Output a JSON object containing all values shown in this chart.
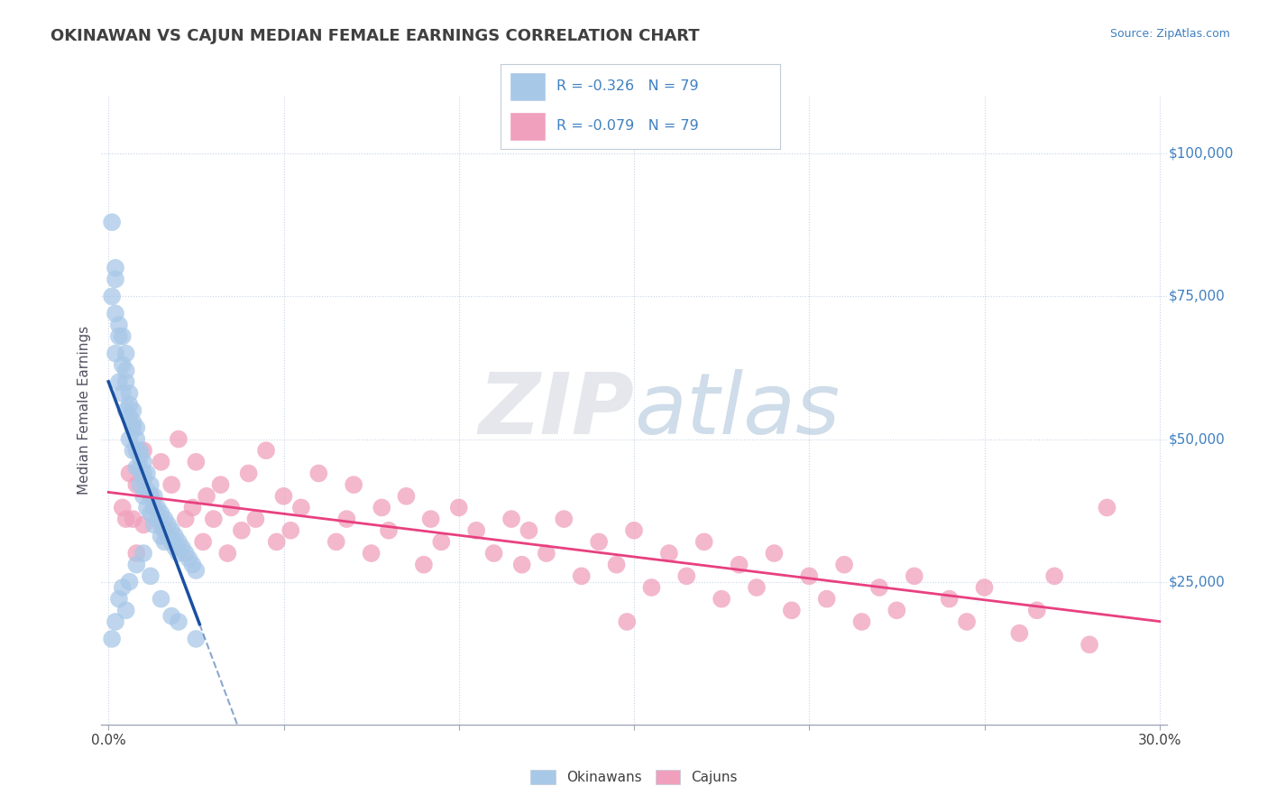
{
  "title": "OKINAWAN VS CAJUN MEDIAN FEMALE EARNINGS CORRELATION CHART",
  "source": "Source: ZipAtlas.com",
  "ylabel": "Median Female Earnings",
  "xlim": [
    -0.002,
    0.302
  ],
  "ylim": [
    0,
    110000
  ],
  "ytick_labels": [
    "$25,000",
    "$50,000",
    "$75,000",
    "$100,000"
  ],
  "ytick_values": [
    25000,
    50000,
    75000,
    100000
  ],
  "xtick_values": [
    0.0,
    0.05,
    0.1,
    0.15,
    0.2,
    0.25,
    0.3
  ],
  "xtick_labels": [
    "0.0%",
    "",
    "",
    "",
    "",
    "",
    "30.0%"
  ],
  "okinawan_color": "#a8c8e8",
  "cajun_color": "#f0a0bc",
  "okinawan_line_color": "#1a50a0",
  "cajun_line_color": "#e84080",
  "R_okinawan": -0.326,
  "R_cajun": -0.079,
  "N_okinawan": 79,
  "N_cajun": 79,
  "background_color": "#ffffff",
  "grid_color": "#c8d4e8",
  "title_color": "#404040",
  "source_color": "#4080c0",
  "legend_text_color": "#4080c0",
  "watermark_zip_color": "#d8dce8",
  "watermark_atlas_color": "#a8bcd8",
  "okinawan_x": [
    0.001,
    0.001,
    0.002,
    0.002,
    0.002,
    0.002,
    0.003,
    0.003,
    0.003,
    0.004,
    0.004,
    0.004,
    0.005,
    0.005,
    0.005,
    0.005,
    0.006,
    0.006,
    0.006,
    0.006,
    0.007,
    0.007,
    0.007,
    0.007,
    0.008,
    0.008,
    0.008,
    0.008,
    0.009,
    0.009,
    0.009,
    0.009,
    0.01,
    0.01,
    0.01,
    0.01,
    0.011,
    0.011,
    0.011,
    0.012,
    0.012,
    0.012,
    0.013,
    0.013,
    0.013,
    0.014,
    0.014,
    0.015,
    0.015,
    0.015,
    0.016,
    0.016,
    0.016,
    0.017,
    0.017,
    0.018,
    0.018,
    0.019,
    0.019,
    0.02,
    0.02,
    0.021,
    0.022,
    0.023,
    0.024,
    0.025,
    0.001,
    0.002,
    0.003,
    0.004,
    0.005,
    0.006,
    0.008,
    0.01,
    0.012,
    0.015,
    0.018,
    0.02,
    0.025
  ],
  "okinawan_y": [
    88000,
    75000,
    80000,
    72000,
    65000,
    78000,
    70000,
    68000,
    60000,
    68000,
    63000,
    58000,
    65000,
    60000,
    55000,
    62000,
    58000,
    54000,
    50000,
    56000,
    55000,
    52000,
    48000,
    53000,
    52000,
    48000,
    45000,
    50000,
    48000,
    45000,
    42000,
    47000,
    46000,
    43000,
    40000,
    44000,
    44000,
    41000,
    38000,
    42000,
    40000,
    37000,
    40000,
    38000,
    35000,
    38000,
    36000,
    37000,
    35000,
    33000,
    36000,
    34000,
    32000,
    35000,
    33000,
    34000,
    32000,
    33000,
    31000,
    32000,
    30000,
    31000,
    30000,
    29000,
    28000,
    27000,
    15000,
    18000,
    22000,
    24000,
    20000,
    25000,
    28000,
    30000,
    26000,
    22000,
    19000,
    18000,
    15000
  ],
  "cajun_x": [
    0.004,
    0.006,
    0.007,
    0.008,
    0.01,
    0.01,
    0.012,
    0.013,
    0.015,
    0.016,
    0.018,
    0.02,
    0.022,
    0.024,
    0.025,
    0.027,
    0.028,
    0.03,
    0.032,
    0.034,
    0.035,
    0.038,
    0.04,
    0.042,
    0.045,
    0.048,
    0.05,
    0.052,
    0.055,
    0.06,
    0.065,
    0.068,
    0.07,
    0.075,
    0.078,
    0.08,
    0.085,
    0.09,
    0.092,
    0.095,
    0.1,
    0.105,
    0.11,
    0.115,
    0.118,
    0.12,
    0.125,
    0.13,
    0.135,
    0.14,
    0.145,
    0.15,
    0.155,
    0.16,
    0.165,
    0.17,
    0.175,
    0.18,
    0.185,
    0.19,
    0.195,
    0.2,
    0.205,
    0.21,
    0.215,
    0.22,
    0.225,
    0.23,
    0.24,
    0.245,
    0.25,
    0.26,
    0.265,
    0.27,
    0.28,
    0.148,
    0.285,
    0.005,
    0.008
  ],
  "cajun_y": [
    38000,
    44000,
    36000,
    42000,
    48000,
    35000,
    40000,
    38000,
    46000,
    34000,
    42000,
    50000,
    36000,
    38000,
    46000,
    32000,
    40000,
    36000,
    42000,
    30000,
    38000,
    34000,
    44000,
    36000,
    48000,
    32000,
    40000,
    34000,
    38000,
    44000,
    32000,
    36000,
    42000,
    30000,
    38000,
    34000,
    40000,
    28000,
    36000,
    32000,
    38000,
    34000,
    30000,
    36000,
    28000,
    34000,
    30000,
    36000,
    26000,
    32000,
    28000,
    34000,
    24000,
    30000,
    26000,
    32000,
    22000,
    28000,
    24000,
    30000,
    20000,
    26000,
    22000,
    28000,
    18000,
    24000,
    20000,
    26000,
    22000,
    18000,
    24000,
    16000,
    20000,
    26000,
    14000,
    18000,
    38000,
    36000,
    30000
  ]
}
